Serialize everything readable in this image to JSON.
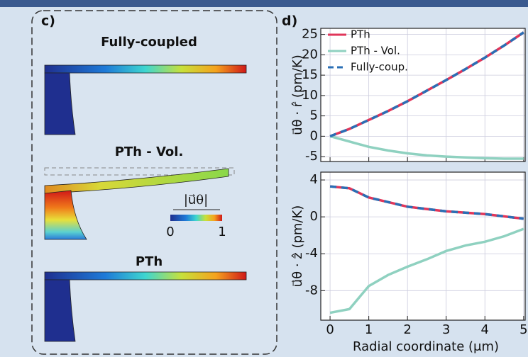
{
  "panel_c": {
    "label": "c)",
    "titles": [
      "Fully-coupled",
      "PTh - Vol.",
      "PTh"
    ],
    "colorbar": {
      "label": "|u⃗θ|",
      "ticks": [
        0,
        1
      ]
    }
  },
  "chart_data": [
    {
      "type": "line",
      "panel_label": "d)",
      "ylabel": "u⃗θ · r̂ (pm/K)",
      "x": [
        0,
        0.5,
        1,
        1.5,
        2,
        2.5,
        3,
        3.5,
        4,
        4.5,
        5
      ],
      "series": [
        {
          "name": "PTh",
          "color": "#e0365a",
          "style": "solid",
          "values": [
            0,
            1.8,
            4,
            6.2,
            8.6,
            11.2,
            13.8,
            16.5,
            19.3,
            22.3,
            25.5
          ]
        },
        {
          "name": "PTh - Vol.",
          "color": "#8fd1c0",
          "style": "solid",
          "values": [
            0,
            -1.3,
            -2.6,
            -3.5,
            -4.2,
            -4.7,
            -5.0,
            -5.2,
            -5.4,
            -5.5,
            -5.5
          ]
        },
        {
          "name": "Fully-coup.",
          "color": "#2a6fb5",
          "style": "dashed",
          "values": [
            0,
            1.8,
            4,
            6.2,
            8.6,
            11.2,
            13.8,
            16.5,
            19.3,
            22.3,
            25.5
          ]
        }
      ],
      "xlim": [
        -0.24,
        5.04
      ],
      "xticks": [
        0,
        1,
        2,
        3,
        4,
        5
      ],
      "ylim": [
        -6.2,
        26.5
      ],
      "yticks": [
        -5,
        0,
        5,
        10,
        15,
        20,
        25
      ],
      "grid": true,
      "legend": "upper left"
    },
    {
      "type": "line",
      "ylabel": "u⃗θ · ẑ (pm/K)",
      "xlabel": "Radial coordinate (μm)",
      "x": [
        0,
        0.5,
        1,
        1.5,
        2,
        2.5,
        3,
        3.5,
        4,
        4.5,
        5
      ],
      "series": [
        {
          "name": "PTh",
          "color": "#e0365a",
          "style": "solid",
          "values": [
            3.3,
            3.1,
            2.1,
            1.6,
            1.1,
            0.85,
            0.6,
            0.45,
            0.3,
            0.05,
            -0.2
          ]
        },
        {
          "name": "PTh - Vol.",
          "color": "#8fd1c0",
          "style": "solid",
          "values": [
            -10.4,
            -10.0,
            -7.5,
            -6.3,
            -5.4,
            -4.6,
            -3.7,
            -3.1,
            -2.7,
            -2.1,
            -1.3
          ]
        },
        {
          "name": "Fully-coup.",
          "color": "#2a6fb5",
          "style": "dashed",
          "values": [
            3.3,
            3.1,
            2.1,
            1.6,
            1.1,
            0.85,
            0.6,
            0.45,
            0.3,
            0.05,
            -0.2
          ]
        }
      ],
      "xlim": [
        -0.24,
        5.04
      ],
      "xticks": [
        0,
        1,
        2,
        3,
        4,
        5
      ],
      "ylim": [
        -11.2,
        4.85
      ],
      "yticks": [
        -8,
        -4,
        0,
        4
      ],
      "grid": true
    }
  ]
}
